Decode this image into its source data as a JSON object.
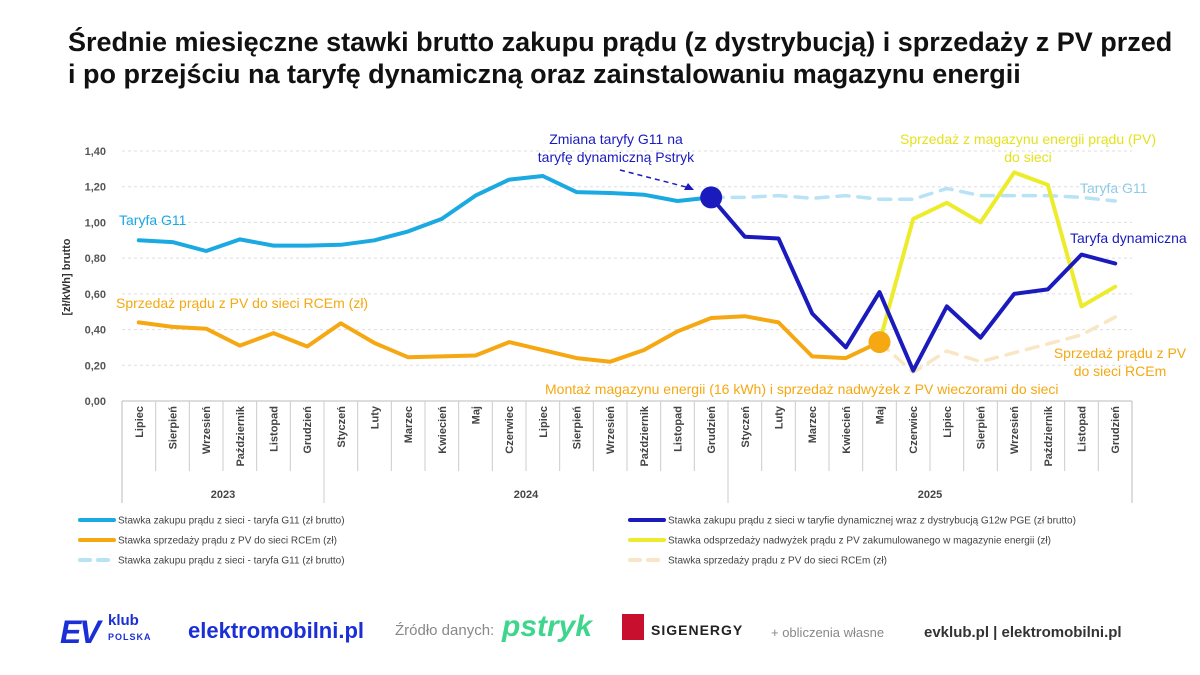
{
  "title": "Średnie miesięczne stawki brutto zakupu prądu (z dystrybucją) i sprzedaży z PV przed i po przejściu na taryfę dynamiczną oraz zainstalowaniu magazynu energii",
  "chart_data": {
    "type": "line",
    "ylabel": "[zł/kWh] brutto",
    "ylim": [
      0,
      1.4
    ],
    "ytick_labels": [
      "0,00",
      "0,20",
      "0,40",
      "0,60",
      "0,80",
      "1,00",
      "1,20",
      "1,40"
    ],
    "categories": [
      "Lipiec",
      "Sierpień",
      "Wrzesień",
      "Październik",
      "Listopad",
      "Grudzień",
      "Styczeń",
      "Luty",
      "Marzec",
      "Kwiecień",
      "Maj",
      "Czerwiec",
      "Lipiec",
      "Sierpień",
      "Wrzesień",
      "Październik",
      "Listopad",
      "Grudzień",
      "Styczeń",
      "Luty",
      "Marzec",
      "Kwiecień",
      "Maj",
      "Czerwiec",
      "Lipiec",
      "Sierpień",
      "Wrzesień",
      "Październik",
      "Listopad",
      "Grudzień"
    ],
    "years": [
      {
        "label": "2023",
        "start": 0,
        "end": 5
      },
      {
        "label": "2024",
        "start": 6,
        "end": 17
      },
      {
        "label": "2025",
        "start": 18,
        "end": 29
      }
    ],
    "series": [
      {
        "name": "Stawka zakupu prądu z sieci - taryfa G11 (zł brutto)",
        "color": "#1aa9e1",
        "style": "solid",
        "values": [
          0.9,
          0.89,
          0.84,
          0.905,
          0.87,
          0.87,
          0.875,
          0.9,
          0.95,
          1.02,
          1.15,
          1.24,
          1.26,
          1.17,
          1.165,
          1.155,
          1.12,
          1.14,
          null,
          null,
          null,
          null,
          null,
          null,
          null,
          null,
          null,
          null,
          null,
          null
        ]
      },
      {
        "name": "Stawka zakupu prądu z sieci w taryfie dynamicznej wraz z dystrybucją G12w PGE (zł brutto)",
        "color": "#1b1bbd",
        "style": "solid",
        "values": [
          null,
          null,
          null,
          null,
          null,
          null,
          null,
          null,
          null,
          null,
          null,
          null,
          null,
          null,
          null,
          null,
          null,
          1.14,
          0.92,
          0.91,
          0.49,
          0.3,
          0.61,
          0.17,
          0.53,
          0.355,
          0.6,
          0.625,
          0.82,
          0.77
        ]
      },
      {
        "name": "Stawka sprzedaży prądu z PV do sieci RCEm (zł)",
        "color": "#f5a811",
        "style": "solid",
        "values": [
          0.44,
          0.415,
          0.405,
          0.31,
          0.38,
          0.305,
          0.435,
          0.325,
          0.245,
          0.25,
          0.255,
          0.33,
          0.285,
          0.24,
          0.22,
          0.285,
          0.39,
          0.465,
          0.475,
          0.44,
          0.25,
          0.24,
          0.33,
          null,
          null,
          null,
          null,
          null,
          null,
          null
        ]
      },
      {
        "name": "Stawka odsprzedaży nadwyżek prądu z PV zakumulowanego w magazynie energii (zł)",
        "color": "#ecec2c",
        "style": "solid",
        "values": [
          null,
          null,
          null,
          null,
          null,
          null,
          null,
          null,
          null,
          null,
          null,
          null,
          null,
          null,
          null,
          null,
          null,
          null,
          null,
          null,
          null,
          null,
          0.33,
          1.02,
          1.11,
          1.0,
          1.28,
          1.21,
          0.53,
          0.64
        ]
      },
      {
        "name": "Stawka zakupu prądu z sieci - taryfa G11 (zł brutto)",
        "color": "#b8e2f5",
        "style": "dashed",
        "values": [
          null,
          null,
          null,
          null,
          null,
          null,
          null,
          null,
          null,
          null,
          null,
          null,
          null,
          null,
          null,
          null,
          null,
          1.14,
          1.14,
          1.15,
          1.135,
          1.15,
          1.13,
          1.13,
          1.19,
          1.15,
          1.15,
          1.15,
          1.14,
          1.12
        ]
      },
      {
        "name": "Stawka sprzedaży prądu z PV do sieci RCEm (zł)",
        "color": "#f8e6c4",
        "style": "dashed",
        "values": [
          null,
          null,
          null,
          null,
          null,
          null,
          null,
          null,
          null,
          null,
          null,
          null,
          null,
          null,
          null,
          null,
          null,
          null,
          null,
          null,
          null,
          null,
          0.33,
          0.16,
          0.28,
          0.22,
          0.27,
          0.32,
          0.37,
          0.47
        ]
      }
    ],
    "markers": [
      {
        "name": "Zmiana taryfy",
        "index": 17,
        "value": 1.14,
        "color": "#1b1bbd"
      },
      {
        "name": "Montaż magazynu",
        "index": 22,
        "value": 0.33,
        "color": "#f5a811"
      }
    ],
    "annotations": {
      "g11_left": "Taryfa G11",
      "g11_right": "Taryfa G11",
      "rcem_left": "Sprzedaż prądu z PV do sieci RCEm (zł)",
      "dynamic": "Taryfa dynamiczna",
      "tariff_change_line1": "Zmiana taryfy G11 na",
      "tariff_change_line2": "taryfę dynamiczną Pstryk",
      "storage_sale_line1": "Sprzedaż z magazynu energii prądu (PV)",
      "storage_sale_line2": "do sieci",
      "rcem_right_line1": "Sprzedaż prądu z PV",
      "rcem_right_line2": "do sieci RCEm",
      "storage_install": "Montaż magazynu energii (16 kWh) i sprzedaż nadwyżek z PV wieczorami do sieci"
    },
    "legend": [
      {
        "label": "Stawka zakupu prądu z sieci - taryfa G11 (zł brutto)",
        "color": "#1aa9e1",
        "style": "solid"
      },
      {
        "label": "Stawka zakupu prądu z sieci w taryfie dynamicznej wraz z dystrybucją G12w PGE (zł brutto)",
        "color": "#1b1bbd",
        "style": "solid"
      },
      {
        "label": "Stawka sprzedaży prądu z PV do sieci RCEm (zł)",
        "color": "#f5a811",
        "style": "solid"
      },
      {
        "label": "Stawka odsprzedaży nadwyżek prądu z PV zakumulowanego w magazynie energii (zł)",
        "color": "#ecec2c",
        "style": "solid"
      },
      {
        "label": "Stawka zakupu prądu z sieci - taryfa G11 (zł brutto)",
        "color": "#b8e2f5",
        "style": "dashed"
      },
      {
        "label": "Stawka sprzedaży prądu z PV do sieci RCEm (zł)",
        "color": "#f8e6c4",
        "style": "dashed"
      }
    ]
  },
  "footer": {
    "logo_ev": "EV",
    "logo_klub": "klub",
    "logo_polska": "POLSKA",
    "site_main": "elektromobilni.pl",
    "source_label": "Źródło danych:",
    "pstryk_logo": "pstryk",
    "sigenergy_logo": "SIGENERGY",
    "own_calc": "+ obliczenia własne",
    "sites": "evklub.pl | elektromobilni.pl"
  }
}
